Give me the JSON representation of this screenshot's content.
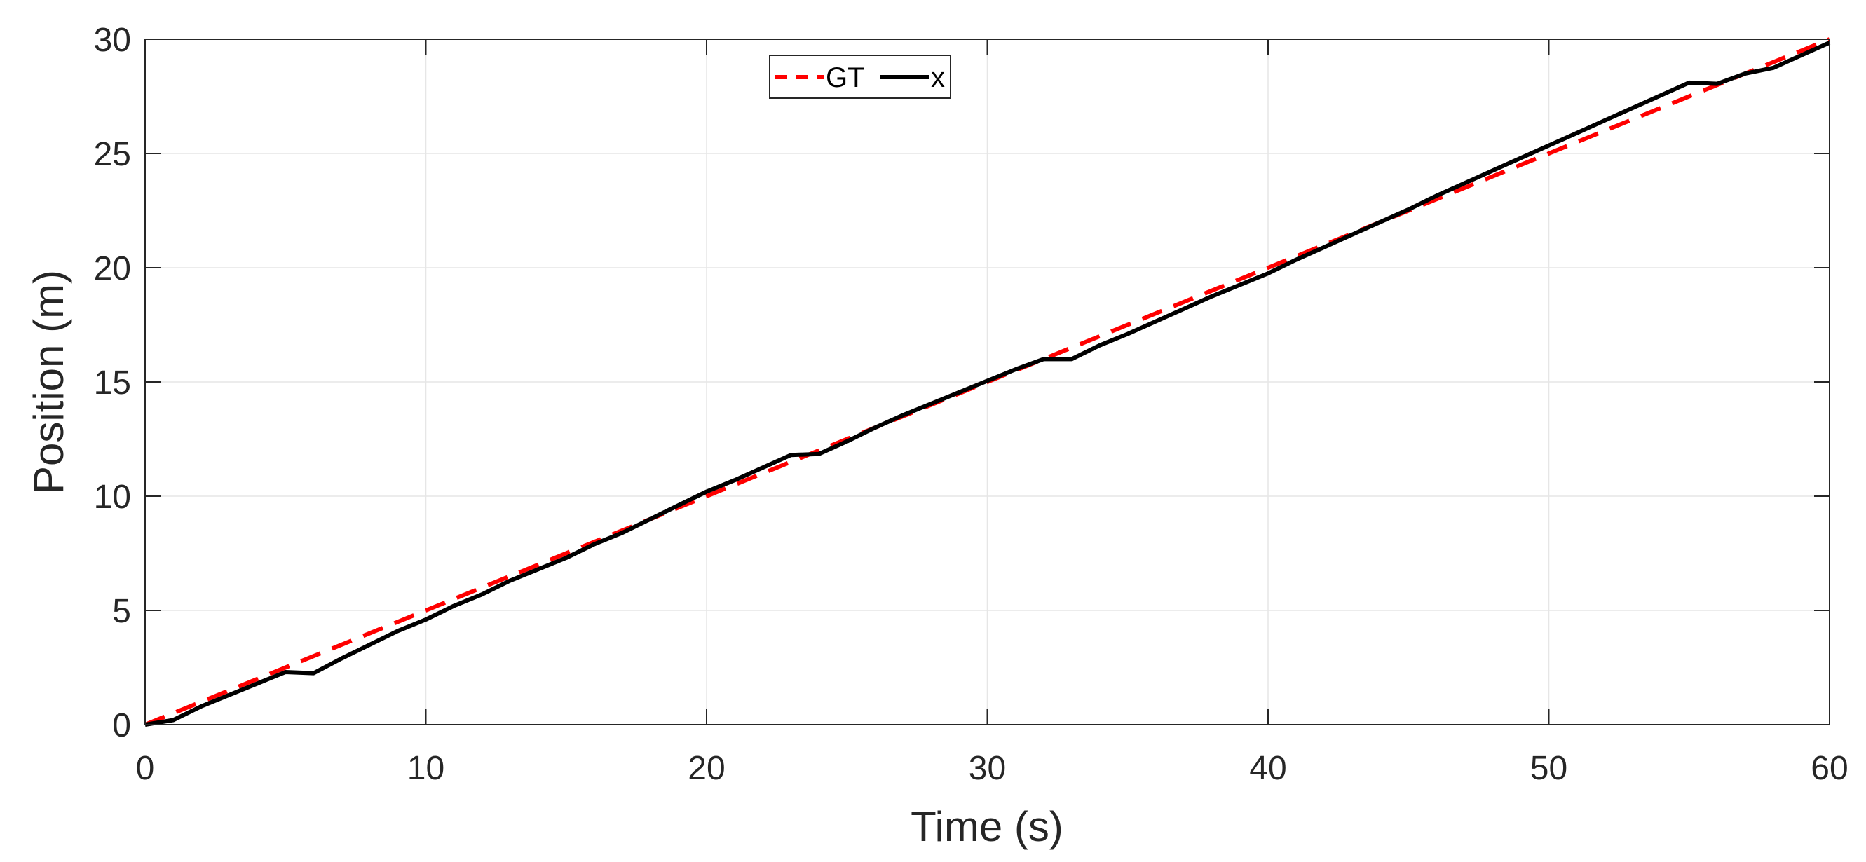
{
  "chart_data": {
    "type": "line",
    "title": "",
    "xlabel": "Time (s)",
    "ylabel": "Position (m)",
    "xlim": [
      0,
      60
    ],
    "ylim": [
      0,
      30
    ],
    "xticks": [
      0,
      10,
      20,
      30,
      40,
      50,
      60
    ],
    "yticks": [
      0,
      5,
      10,
      15,
      20,
      25,
      30
    ],
    "xtick_labels": [
      "0",
      "10",
      "20",
      "30",
      "40",
      "50",
      "60"
    ],
    "ytick_labels": [
      "0",
      "5",
      "10",
      "15",
      "20",
      "25",
      "30"
    ],
    "grid": true,
    "legend_position": "top-center",
    "series": [
      {
        "name": "GT",
        "style": "dashed",
        "color": "#ff0000",
        "x": [
          0,
          60
        ],
        "y": [
          0,
          30
        ]
      },
      {
        "name": "x",
        "style": "solid",
        "color": "#000000",
        "x": [
          0,
          1,
          2,
          3,
          4,
          5,
          6,
          7,
          8,
          9,
          10,
          11,
          12,
          13,
          14,
          15,
          16,
          17,
          18,
          19,
          20,
          21,
          22,
          23,
          24,
          25,
          26,
          27,
          28,
          29,
          30,
          31,
          32,
          33,
          34,
          35,
          36,
          37,
          38,
          39,
          40,
          41,
          42,
          43,
          44,
          45,
          46,
          47,
          48,
          49,
          50,
          51,
          52,
          53,
          54,
          55,
          56,
          57,
          58,
          59,
          60
        ],
        "y": [
          0,
          0.2,
          0.8,
          1.3,
          1.8,
          2.3,
          2.25,
          2.9,
          3.5,
          4.1,
          4.6,
          5.2,
          5.7,
          6.3,
          6.8,
          7.3,
          7.9,
          8.4,
          9.0,
          9.6,
          10.2,
          10.7,
          11.25,
          11.8,
          11.85,
          12.4,
          13.0,
          13.55,
          14.05,
          14.55,
          15.05,
          15.55,
          16.0,
          16.0,
          16.6,
          17.1,
          17.65,
          18.2,
          18.75,
          19.25,
          19.75,
          20.35,
          20.9,
          21.45,
          22.0,
          22.55,
          23.15,
          23.7,
          24.25,
          24.8,
          25.35,
          25.9,
          26.45,
          27.0,
          27.55,
          28.1,
          28.05,
          28.5,
          28.75,
          29.3,
          29.85
        ]
      }
    ]
  }
}
